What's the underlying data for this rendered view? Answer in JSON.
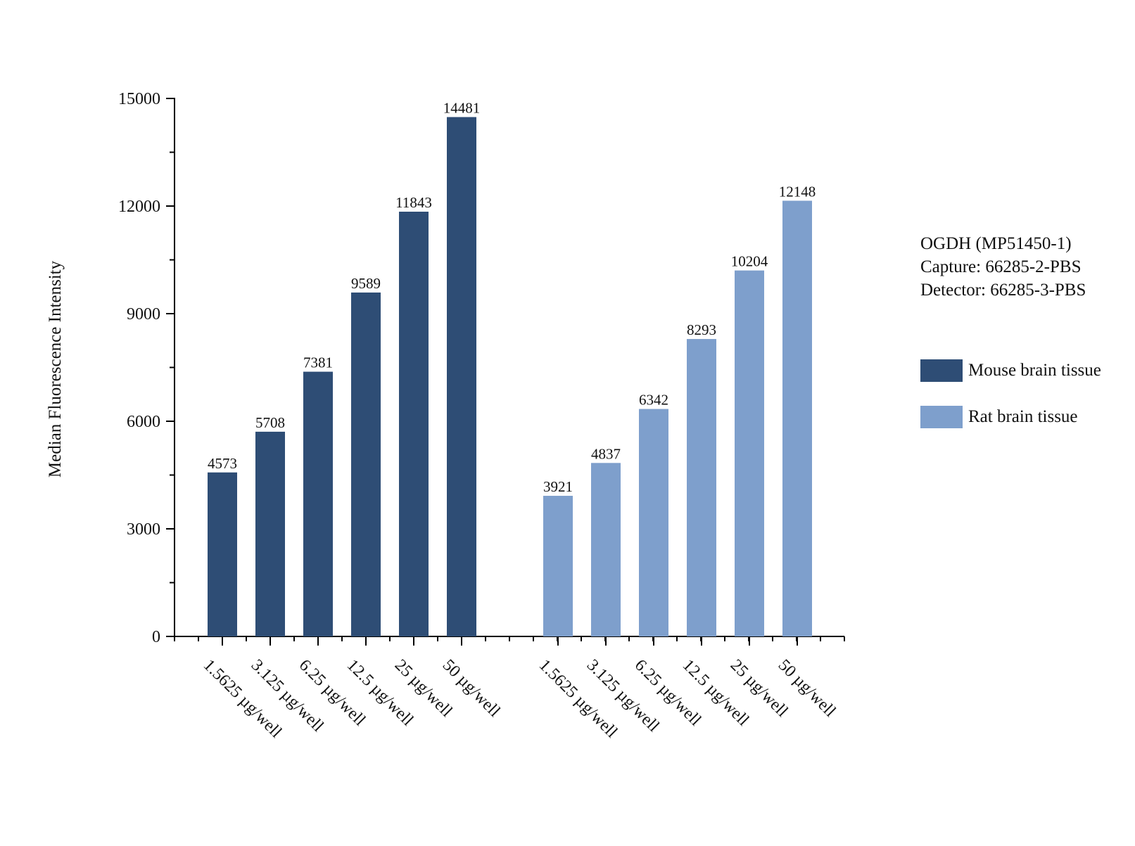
{
  "chart_data": {
    "type": "bar",
    "ylabel": "Median Fluorescence Intensity",
    "xlabel": "",
    "ylim": [
      0,
      15000
    ],
    "yticks": [
      0,
      3000,
      6000,
      9000,
      12000,
      15000
    ],
    "grid": false,
    "legend_position": "right",
    "groups": [
      {
        "name": "Mouse brain tissue",
        "color": "#2e4d75",
        "categories": [
          "1.5625 µg/well",
          "3.125 µg/well",
          "6.25 µg/well",
          "12.5 µg/well",
          "25 µg/well",
          "50 µg/well"
        ],
        "values": [
          4573,
          5708,
          7381,
          9589,
          11843,
          14481
        ]
      },
      {
        "name": "Rat brain tissue",
        "color": "#7e9fcc",
        "categories": [
          "1.5625 µg/well",
          "3.125 µg/well",
          "6.25 µg/well",
          "12.5 µg/well",
          "25 µg/well",
          "50 µg/well"
        ],
        "values": [
          3921,
          4837,
          6342,
          8293,
          10204,
          12148
        ]
      }
    ]
  },
  "annotation": {
    "lines": [
      "OGDH (MP51450-1)",
      "Capture: 66285-2-PBS",
      "Detector: 66285-3-PBS"
    ]
  },
  "legend": {
    "items": [
      {
        "label": "Mouse brain tissue",
        "color": "#2e4d75"
      },
      {
        "label": "Rat brain tissue",
        "color": "#7e9fcc"
      }
    ]
  }
}
